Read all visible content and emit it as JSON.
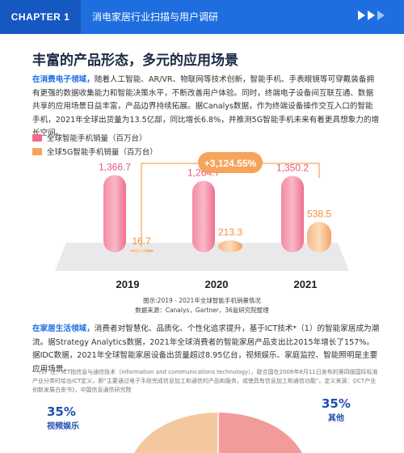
{
  "header": {
    "chapter": "CHAPTER 1",
    "title": "消电家居行业扫描与用户调研"
  },
  "section_title": "丰富的产品形态，多元的应用场景",
  "para1": {
    "lead": "在消费电子领域，",
    "text": "随着人工智能、AR/VR、物联网等技术创新，智能手机、手表眼镜等可穿戴装备拥有更强的数据收集能力和智能决策水平，不断改善用户体验。同时，终端电子设备间互联互通、数据共享的应用场景日益丰富，产品边界持续拓展。据Canalys数据，作为终端设备操作交互入口的智能手机，2021年全球出货量为13.5亿部，同比增长6.8%，并推测5G智能手机未来有着更具想象力的增长空间。"
  },
  "chart_data": {
    "type": "bar",
    "categories": [
      "2019",
      "2020",
      "2021"
    ],
    "series": [
      {
        "name": "全球智能手机销量（百万台）",
        "values": [
          1366.7,
          1264.7,
          1350.2
        ],
        "labels": [
          "1,366.7",
          "1,264.7",
          "1,350.2"
        ],
        "color": "#f26b8a"
      },
      {
        "name": "全球5G智能手机销量（百万台）",
        "values": [
          16.7,
          213.3,
          538.5
        ],
        "labels": [
          "16.7",
          "213.3",
          "538.5"
        ],
        "color": "#f6a35c"
      }
    ],
    "annotation": "+3,124.55%",
    "ylim": [
      0,
      1500
    ]
  },
  "caption": {
    "line1": "图示:2019 - 2021年全球智能手机销量情况",
    "line2": "数据来源：Canalys，Gartner，36氪研究院整理"
  },
  "para2": {
    "lead": "在家居生活领域，",
    "text": "消费者对智慧化、品质化、个性化追求提升，基于ICT技术*（1）的智能家居成为潮流。据Strategy Analytics数据，2021年全球消费者的智能家居产品支出比2015年增长了157%。据IDC数据，2021年全球智能家居设备出货量超过8.95亿台，视频娱乐、家庭监控、智能照明是主要应用场景。"
  },
  "footnote": "*（1）注：ICT指信息与通信技术（information and communications technology），联合国在2008年8月11日发布的第四版国际标准产业分类时给出ICT定义，即“主要通过电子手段完成信息加工和通信的产品和服务，或使具有信息加工和通信功能”。定义来源：《ICT产业创新发展白皮书》，中国信息通信研究院",
  "pie": {
    "slices": [
      {
        "name": "视频娱乐",
        "value": "35%",
        "share": 35,
        "color": "#f3c8a0"
      },
      {
        "name": "其他",
        "value": "35%",
        "share": 35,
        "color": "#f29b9b"
      }
    ]
  }
}
